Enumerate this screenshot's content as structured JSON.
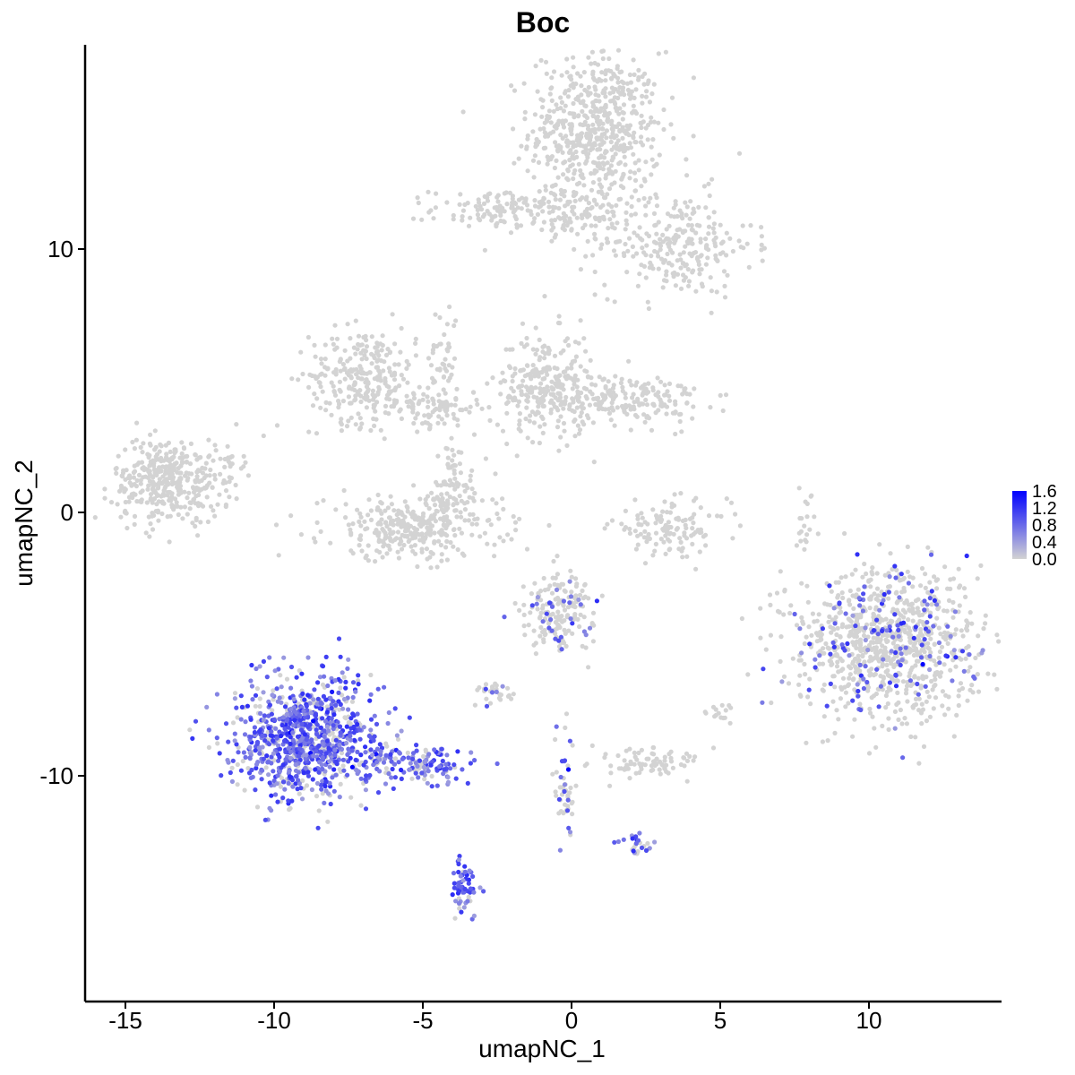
{
  "chart_data": {
    "type": "scatter",
    "title": "Boc",
    "xlabel": "umapNC_1",
    "ylabel": "umapNC_2",
    "xlim": [
      -16.5,
      14.5
    ],
    "ylim": [
      -17.9,
      17.6
    ],
    "x_ticks": [
      -15,
      -10,
      -5,
      0,
      5,
      10
    ],
    "x_tick_labels": [
      "-15",
      "-10",
      "-5",
      "0",
      "5",
      "10"
    ],
    "y_ticks": [
      -10,
      0,
      10
    ],
    "y_tick_labels": [
      "-10",
      "0",
      "10"
    ],
    "grid": false,
    "legend": {
      "type": "colorbar",
      "placement": "right",
      "ticks": [
        1.6,
        1.2,
        0.8,
        0.4,
        0.0
      ],
      "tick_labels": [
        "1.6",
        "1.2",
        "0.8",
        "0.4",
        "0.0"
      ],
      "min": 0.0,
      "max": 1.6,
      "color_low": "#D3D3D3",
      "color_high": "#0000FF"
    },
    "colors": {
      "low": "#D3D3D3",
      "high": "#0000FF",
      "axis": "#000000",
      "background": "#FFFFFF"
    },
    "clusters": [
      {
        "name": "top",
        "cx": 0.8,
        "cy": 14.5,
        "sx": 1.1,
        "sy": 1.5,
        "n": 600,
        "expr": 0.0
      },
      {
        "name": "top-arm-left",
        "cx": -2.3,
        "cy": 11.5,
        "sx": 1.2,
        "sy": 0.4,
        "n": 120,
        "expr": 0.0
      },
      {
        "name": "top-arm-right",
        "cx": 3.5,
        "cy": 10.2,
        "sx": 1.3,
        "sy": 1.0,
        "n": 260,
        "expr": 0.0
      },
      {
        "name": "top-bridge",
        "cx": 0.2,
        "cy": 11.2,
        "sx": 0.9,
        "sy": 0.5,
        "n": 80,
        "expr": 0.0
      },
      {
        "name": "mid-left",
        "cx": -7.0,
        "cy": 5.2,
        "sx": 0.9,
        "sy": 0.9,
        "n": 260,
        "expr": 0.0
      },
      {
        "name": "mid-left-arm",
        "cx": -4.8,
        "cy": 4.0,
        "sx": 0.9,
        "sy": 0.4,
        "n": 100,
        "expr": 0.0
      },
      {
        "name": "mid-stalk",
        "cx": -4.3,
        "cy": 6.0,
        "sx": 0.25,
        "sy": 1.0,
        "n": 40,
        "expr": 0.0
      },
      {
        "name": "mid-center",
        "cx": -0.9,
        "cy": 4.8,
        "sx": 0.8,
        "sy": 1.0,
        "n": 260,
        "expr": 0.0
      },
      {
        "name": "mid-center-arm",
        "cx": 1.8,
        "cy": 4.3,
        "sx": 1.3,
        "sy": 0.5,
        "n": 200,
        "expr": 0.0
      },
      {
        "name": "far-left",
        "cx": -13.6,
        "cy": 1.2,
        "sx": 0.9,
        "sy": 0.8,
        "n": 360,
        "expr": 0.0
      },
      {
        "name": "far-left-tail",
        "cx": -11.8,
        "cy": 1.6,
        "sx": 0.4,
        "sy": 0.6,
        "n": 40,
        "expr": 0.0
      },
      {
        "name": "u-shape",
        "cx": -5.3,
        "cy": -0.6,
        "sx": 1.5,
        "sy": 0.6,
        "n": 320,
        "expr": 0.0
      },
      {
        "name": "u-shape-arm",
        "cx": -4.0,
        "cy": 1.0,
        "sx": 0.6,
        "sy": 0.9,
        "n": 80,
        "expr": 0.0
      },
      {
        "name": "small-arc",
        "cx": 3.3,
        "cy": -0.6,
        "sx": 1.0,
        "sy": 0.5,
        "n": 120,
        "expr": 0.0
      },
      {
        "name": "right-big",
        "cx": 10.6,
        "cy": -5.0,
        "sx": 1.6,
        "sy": 1.4,
        "n": 950,
        "expr": 0.01
      },
      {
        "name": "center-lower",
        "cx": -0.4,
        "cy": -3.8,
        "sx": 0.6,
        "sy": 0.7,
        "n": 180,
        "expr": 0.02
      },
      {
        "name": "small-left",
        "cx": -2.5,
        "cy": -6.8,
        "sx": 0.4,
        "sy": 0.2,
        "n": 30,
        "expr": 0.1
      },
      {
        "name": "small-right",
        "cx": 2.7,
        "cy": -9.5,
        "sx": 0.8,
        "sy": 0.3,
        "n": 80,
        "expr": 0.0
      },
      {
        "name": "expr-main",
        "cx": -9.0,
        "cy": -8.6,
        "sx": 1.2,
        "sy": 1.1,
        "n": 900,
        "expr": 0.6
      },
      {
        "name": "expr-arm",
        "cx": -5.3,
        "cy": -9.5,
        "sx": 1.1,
        "sy": 0.4,
        "n": 160,
        "expr": 0.6
      },
      {
        "name": "expr-stem",
        "cx": -3.6,
        "cy": -14.3,
        "sx": 0.2,
        "sy": 0.6,
        "n": 60,
        "expr": 0.7
      },
      {
        "name": "lower-stem",
        "cx": -0.2,
        "cy": -10.5,
        "sx": 0.2,
        "sy": 0.9,
        "n": 50,
        "expr": 0.1
      },
      {
        "name": "lower-right",
        "cx": 2.3,
        "cy": -12.6,
        "sx": 0.3,
        "sy": 0.2,
        "n": 25,
        "expr": 0.6
      },
      {
        "name": "tiny-right",
        "cx": 5.0,
        "cy": -7.6,
        "sx": 0.2,
        "sy": 0.2,
        "n": 15,
        "expr": 0.0
      },
      {
        "name": "thin-line",
        "cx": 7.9,
        "cy": -0.3,
        "sx": 0.15,
        "sy": 0.6,
        "n": 20,
        "expr": 0.0
      }
    ]
  }
}
